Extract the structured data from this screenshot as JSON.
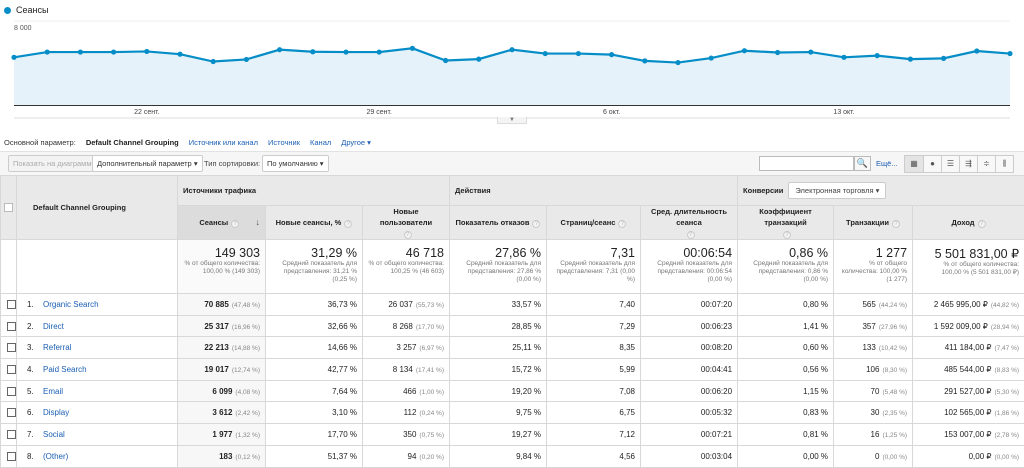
{
  "chart_data": {
    "type": "area",
    "series": [
      {
        "name": "Сеансы",
        "values": [
          4540,
          5040,
          5040,
          5040,
          5100,
          4840,
          4140,
          4340,
          5270,
          5070,
          5040,
          5040,
          5400,
          4240,
          4370,
          5270,
          4900,
          4900,
          4800,
          4200,
          4040,
          4470,
          5170,
          5000,
          5040,
          4540,
          4700,
          4370,
          4440,
          5140,
          4900
        ]
      }
    ],
    "x_tick_labels": [
      "22 сент.",
      "29 сент.",
      "6 окт.",
      "13 окт."
    ],
    "x_tick_indices": [
      4,
      11,
      18,
      25
    ],
    "y_tick_labels": [
      "8 000",
      "4 000"
    ],
    "ylim": [
      0,
      8000
    ],
    "color": "#058dc7",
    "fill": "#e5f2f9",
    "grid": true,
    "legend": "top-left"
  },
  "dimension_bar": {
    "label": "Основной параметр:",
    "current": "Default Channel Grouping",
    "links": [
      "Источник или канал",
      "Источник",
      "Канал",
      "Другое ▾"
    ]
  },
  "toolbar": {
    "plot_rows": "Показать на диаграмме",
    "secondary_dim": "Дополнительный параметр ▾",
    "sort_label": "Тип сортировки:",
    "sort_value": "По умолчанию ▾",
    "search_placeholder": "",
    "more": "Ещё...",
    "views": [
      "table-view-icon",
      "pie-view-icon",
      "performance-view-icon",
      "comparison-view-icon",
      "term-cloud-icon",
      "pivot-view-icon"
    ]
  },
  "table": {
    "dim_header": "Default Channel Grouping",
    "groups": {
      "acq": "Источники трафика",
      "beh": "Действия",
      "conv": "Конверсии",
      "conv_select": "Электронная торговля ▾"
    },
    "columns": [
      "Сеансы",
      "Новые сеансы, %",
      "Новые пользователи",
      "Показатель отказов",
      "Страниц/сеанс",
      "Сред. длительность сеанса",
      "Коэффициент транзакций",
      "Транзакции",
      "Доход"
    ],
    "totals": [
      {
        "value": "149 303",
        "sub": "% от общего количества: 100,00 % (149 303)"
      },
      {
        "value": "31,29 %",
        "sub": "Средний показатель для представления: 31,21 % (0,25 %)"
      },
      {
        "value": "46 718",
        "sub": "% от общего количества: 100,25 % (46 603)"
      },
      {
        "value": "27,86 %",
        "sub": "Средний показатель для представления: 27,86 % (0,00 %)"
      },
      {
        "value": "7,31",
        "sub": "Средний показатель для представления: 7,31 (0,00 %)"
      },
      {
        "value": "00:06:54",
        "sub": "Средний показатель для представления: 00:06:54 (0,00 %)"
      },
      {
        "value": "0,86 %",
        "sub": "Средний показатель для представления: 0,86 % (0,00 %)"
      },
      {
        "value": "1 277",
        "sub": "% от общего количества: 100,00 % (1 277)"
      },
      {
        "value": "5 501 831,00 ₽",
        "sub": "% от общего количества: 100,00 % (5 501 831,00 ₽)"
      }
    ],
    "rows": [
      {
        "idx": "1.",
        "name": "Organic Search",
        "sessions": "70 885",
        "sessions_pct": "(47,48 %)",
        "new_pct": "36,73 %",
        "new_users": "26 037",
        "new_users_pct": "(55,73 %)",
        "bounce": "33,57 %",
        "pages": "7,40",
        "duration": "00:07:20",
        "conv": "0,80 %",
        "trans": "565",
        "trans_pct": "(44,24 %)",
        "rev": "2 465 995,00 ₽",
        "rev_pct": "(44,82 %)"
      },
      {
        "idx": "2.",
        "name": "Direct",
        "sessions": "25 317",
        "sessions_pct": "(16,96 %)",
        "new_pct": "32,66 %",
        "new_users": "8 268",
        "new_users_pct": "(17,70 %)",
        "bounce": "28,85 %",
        "pages": "7,29",
        "duration": "00:06:23",
        "conv": "1,41 %",
        "trans": "357",
        "trans_pct": "(27,96 %)",
        "rev": "1 592 009,00 ₽",
        "rev_pct": "(28,94 %)"
      },
      {
        "idx": "3.",
        "name": "Referral",
        "sessions": "22 213",
        "sessions_pct": "(14,88 %)",
        "new_pct": "14,66 %",
        "new_users": "3 257",
        "new_users_pct": "(6,97 %)",
        "bounce": "25,11 %",
        "pages": "8,35",
        "duration": "00:08:20",
        "conv": "0,60 %",
        "trans": "133",
        "trans_pct": "(10,42 %)",
        "rev": "411 184,00 ₽",
        "rev_pct": "(7,47 %)"
      },
      {
        "idx": "4.",
        "name": "Paid Search",
        "sessions": "19 017",
        "sessions_pct": "(12,74 %)",
        "new_pct": "42,77 %",
        "new_users": "8 134",
        "new_users_pct": "(17,41 %)",
        "bounce": "15,72 %",
        "pages": "5,99",
        "duration": "00:04:41",
        "conv": "0,56 %",
        "trans": "106",
        "trans_pct": "(8,30 %)",
        "rev": "485 544,00 ₽",
        "rev_pct": "(8,83 %)"
      },
      {
        "idx": "5.",
        "name": "Email",
        "sessions": "6 099",
        "sessions_pct": "(4,08 %)",
        "new_pct": "7,64 %",
        "new_users": "466",
        "new_users_pct": "(1,00 %)",
        "bounce": "19,20 %",
        "pages": "7,08",
        "duration": "00:06:20",
        "conv": "1,15 %",
        "trans": "70",
        "trans_pct": "(5,48 %)",
        "rev": "291 527,00 ₽",
        "rev_pct": "(5,30 %)"
      },
      {
        "idx": "6.",
        "name": "Display",
        "sessions": "3 612",
        "sessions_pct": "(2,42 %)",
        "new_pct": "3,10 %",
        "new_users": "112",
        "new_users_pct": "(0,24 %)",
        "bounce": "9,75 %",
        "pages": "6,75",
        "duration": "00:05:32",
        "conv": "0,83 %",
        "trans": "30",
        "trans_pct": "(2,35 %)",
        "rev": "102 565,00 ₽",
        "rev_pct": "(1,86 %)"
      },
      {
        "idx": "7.",
        "name": "Social",
        "sessions": "1 977",
        "sessions_pct": "(1,32 %)",
        "new_pct": "17,70 %",
        "new_users": "350",
        "new_users_pct": "(0,75 %)",
        "bounce": "19,27 %",
        "pages": "7,12",
        "duration": "00:07:21",
        "conv": "0,81 %",
        "trans": "16",
        "trans_pct": "(1,25 %)",
        "rev": "153 007,00 ₽",
        "rev_pct": "(2,78 %)"
      },
      {
        "idx": "8.",
        "name": "(Other)",
        "sessions": "183",
        "sessions_pct": "(0,12 %)",
        "new_pct": "51,37 %",
        "new_users": "94",
        "new_users_pct": "(0,20 %)",
        "bounce": "9,84 %",
        "pages": "4,56",
        "duration": "00:03:04",
        "conv": "0,00 %",
        "trans": "0",
        "trans_pct": "(0,00 %)",
        "rev": "0,00 ₽",
        "rev_pct": "(0,00 %)"
      }
    ]
  }
}
